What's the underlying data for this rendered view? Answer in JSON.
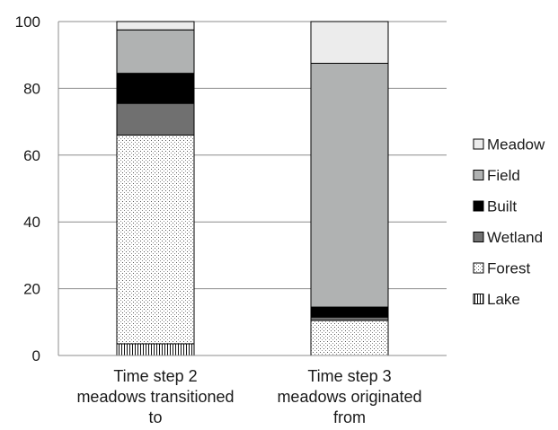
{
  "chart_data": {
    "type": "bar",
    "stacked": true,
    "ylim": [
      0,
      100
    ],
    "yticks": [
      0,
      20,
      40,
      60,
      80,
      100
    ],
    "grid": true,
    "legend_position": "right",
    "categories": [
      [
        "Time step 2",
        "meadows transitioned",
        "to"
      ],
      [
        "Time step 3",
        "meadows originated",
        "from"
      ]
    ],
    "series": [
      {
        "name": "Lake",
        "values": [
          3.5,
          0.0
        ],
        "fill": "#ffffff",
        "pattern": "vertical-stripes"
      },
      {
        "name": "Forest",
        "values": [
          62.5,
          10.5
        ],
        "fill": "#ffffff",
        "pattern": "dots"
      },
      {
        "name": "Wetland",
        "values": [
          9.5,
          1.0
        ],
        "fill": "#707070",
        "pattern": ""
      },
      {
        "name": "Built",
        "values": [
          9.0,
          3.0
        ],
        "fill": "#000000",
        "pattern": ""
      },
      {
        "name": "Field",
        "values": [
          13.0,
          73.0
        ],
        "fill": "#b0b2b2",
        "pattern": ""
      },
      {
        "name": "Meadow",
        "values": [
          2.5,
          12.5
        ],
        "fill": "#ececec",
        "pattern": ""
      }
    ]
  }
}
